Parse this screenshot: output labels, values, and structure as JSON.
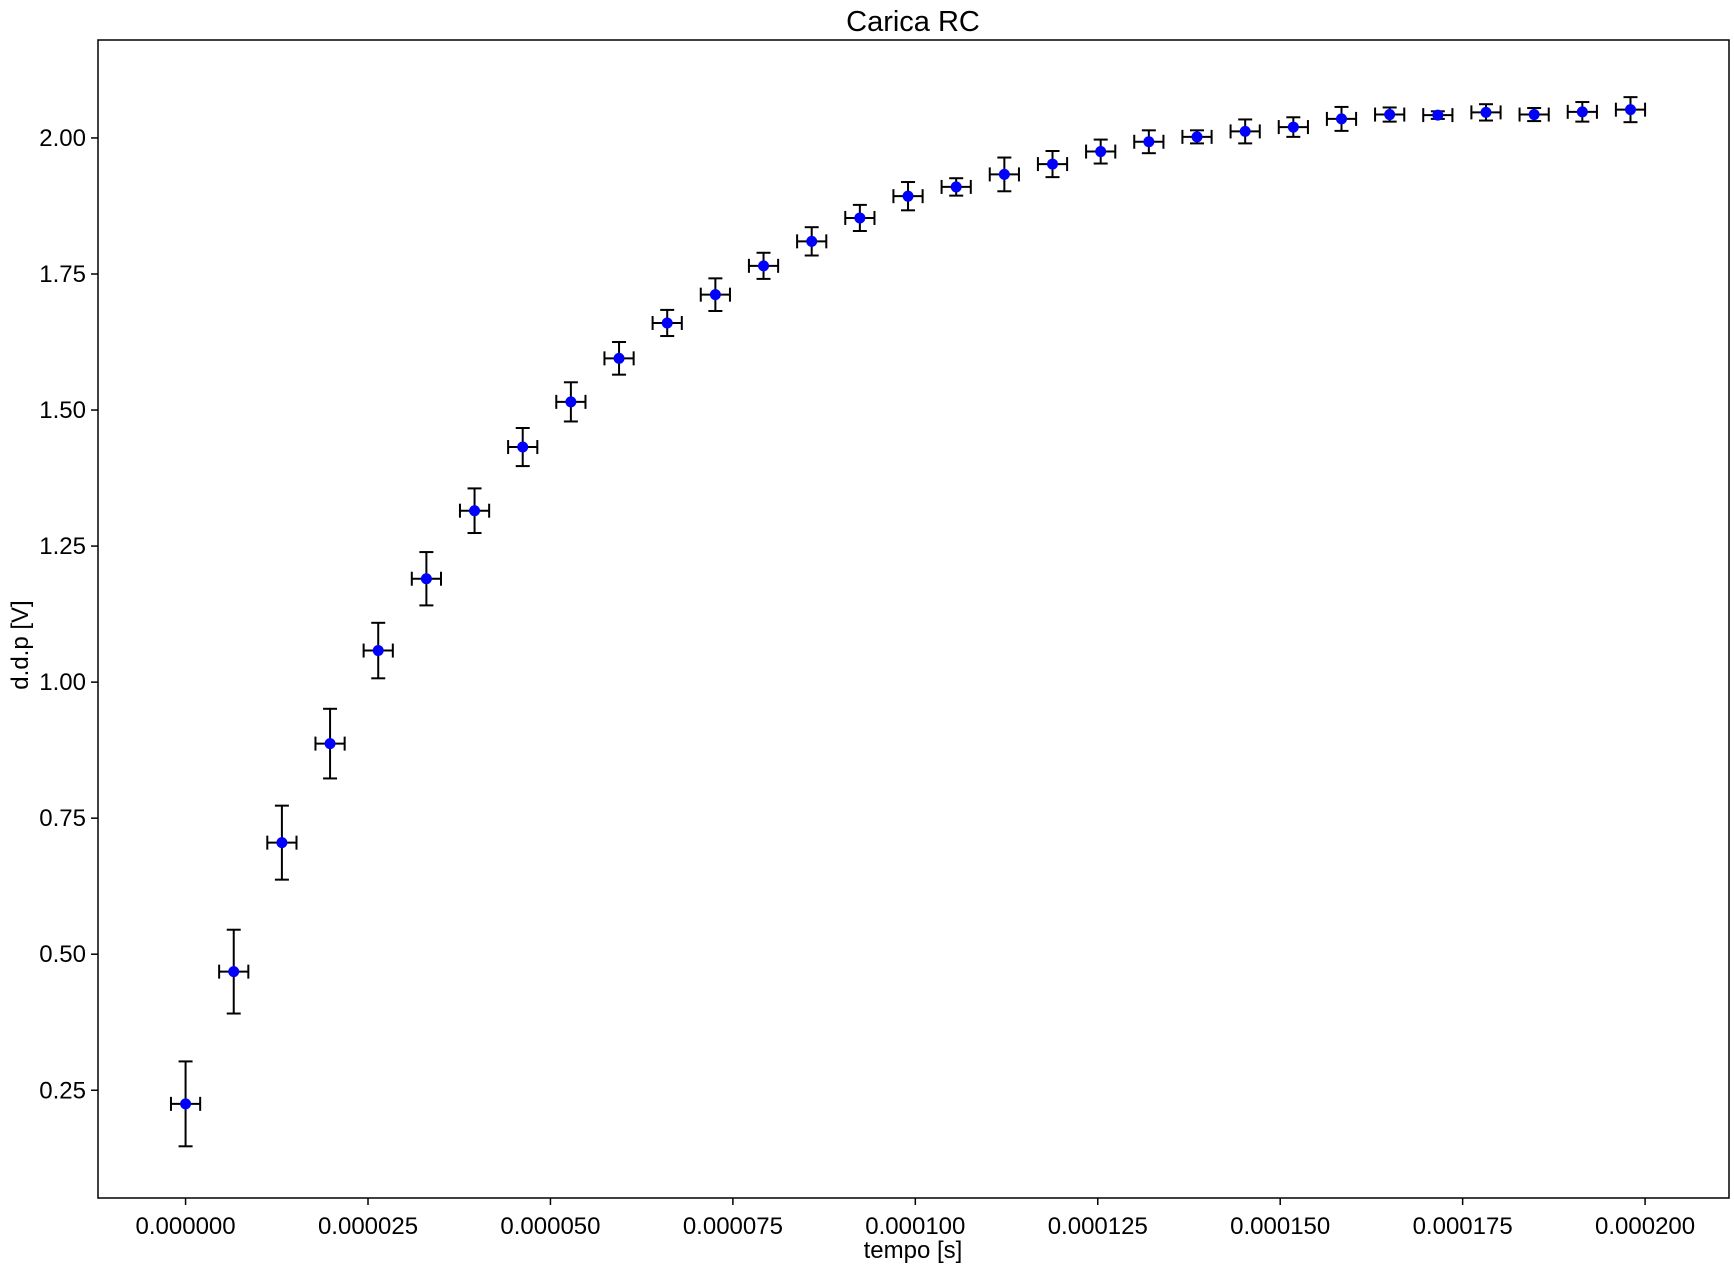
{
  "chart_data": {
    "type": "scatter",
    "title": "Carica RC",
    "xlabel": "tempo [s]",
    "ylabel": "d.d.p [V]",
    "xlim": [
      -1.2e-05,
      0.0002115
    ],
    "ylim": [
      0.052,
      2.18
    ],
    "x_ticks": [
      0.0,
      2.5e-05,
      5e-05,
      7.5e-05,
      0.0001,
      0.000125,
      0.00015,
      0.000175,
      0.0002
    ],
    "x_tick_labels": [
      "0.000000",
      "0.000025",
      "0.000050",
      "0.000075",
      "0.000100",
      "0.000125",
      "0.000150",
      "0.000175",
      "0.000200"
    ],
    "y_ticks": [
      0.25,
      0.5,
      0.75,
      1.0,
      1.25,
      1.5,
      1.75,
      2.0
    ],
    "y_tick_labels": [
      "0.25",
      "0.50",
      "0.75",
      "1.00",
      "1.25",
      "1.50",
      "1.75",
      "2.00"
    ],
    "grid": false,
    "marker_color": "#0000ff",
    "errorbar_color": "#000000",
    "series": [
      {
        "points": [
          {
            "x": 0.0,
            "y": 0.225,
            "xerr": 2e-06,
            "yerr": 0.078
          },
          {
            "x": 6.6e-06,
            "y": 0.468,
            "xerr": 2e-06,
            "yerr": 0.077
          },
          {
            "x": 1.32e-05,
            "y": 0.705,
            "xerr": 2e-06,
            "yerr": 0.068
          },
          {
            "x": 1.98e-05,
            "y": 0.887,
            "xerr": 2e-06,
            "yerr": 0.064
          },
          {
            "x": 2.64e-05,
            "y": 1.058,
            "xerr": 2e-06,
            "yerr": 0.051
          },
          {
            "x": 3.3e-05,
            "y": 1.19,
            "xerr": 2e-06,
            "yerr": 0.049
          },
          {
            "x": 3.96e-05,
            "y": 1.315,
            "xerr": 2e-06,
            "yerr": 0.041
          },
          {
            "x": 4.62e-05,
            "y": 1.432,
            "xerr": 2e-06,
            "yerr": 0.035
          },
          {
            "x": 5.28e-05,
            "y": 1.515,
            "xerr": 2e-06,
            "yerr": 0.036
          },
          {
            "x": 5.94e-05,
            "y": 1.595,
            "xerr": 2e-06,
            "yerr": 0.03
          },
          {
            "x": 6.6e-05,
            "y": 1.66,
            "xerr": 2e-06,
            "yerr": 0.024
          },
          {
            "x": 7.26e-05,
            "y": 1.712,
            "xerr": 2e-06,
            "yerr": 0.03
          },
          {
            "x": 7.92e-05,
            "y": 1.765,
            "xerr": 2e-06,
            "yerr": 0.024
          },
          {
            "x": 8.58e-05,
            "y": 1.81,
            "xerr": 2e-06,
            "yerr": 0.026
          },
          {
            "x": 9.24e-05,
            "y": 1.853,
            "xerr": 2e-06,
            "yerr": 0.024
          },
          {
            "x": 9.9e-05,
            "y": 1.893,
            "xerr": 2e-06,
            "yerr": 0.026
          },
          {
            "x": 0.0001056,
            "y": 1.91,
            "xerr": 2e-06,
            "yerr": 0.016
          },
          {
            "x": 0.0001122,
            "y": 1.933,
            "xerr": 2e-06,
            "yerr": 0.031
          },
          {
            "x": 0.0001188,
            "y": 1.952,
            "xerr": 2e-06,
            "yerr": 0.024
          },
          {
            "x": 0.0001254,
            "y": 1.975,
            "xerr": 2e-06,
            "yerr": 0.022
          },
          {
            "x": 0.000132,
            "y": 1.993,
            "xerr": 2e-06,
            "yerr": 0.021
          },
          {
            "x": 0.0001386,
            "y": 2.002,
            "xerr": 2e-06,
            "yerr": 0.012
          },
          {
            "x": 0.0001452,
            "y": 2.012,
            "xerr": 2e-06,
            "yerr": 0.022
          },
          {
            "x": 0.0001518,
            "y": 2.02,
            "xerr": 2e-06,
            "yerr": 0.018
          },
          {
            "x": 0.0001584,
            "y": 2.035,
            "xerr": 2e-06,
            "yerr": 0.022
          },
          {
            "x": 0.000165,
            "y": 2.043,
            "xerr": 2e-06,
            "yerr": 0.013
          },
          {
            "x": 0.0001716,
            "y": 2.042,
            "xerr": 2e-06,
            "yerr": 0.007
          },
          {
            "x": 0.0001782,
            "y": 2.047,
            "xerr": 2e-06,
            "yerr": 0.015
          },
          {
            "x": 0.0001848,
            "y": 2.043,
            "xerr": 2e-06,
            "yerr": 0.012
          },
          {
            "x": 0.0001914,
            "y": 2.048,
            "xerr": 2e-06,
            "yerr": 0.018
          },
          {
            "x": 0.000198,
            "y": 2.052,
            "xerr": 2e-06,
            "yerr": 0.023
          }
        ]
      }
    ]
  }
}
